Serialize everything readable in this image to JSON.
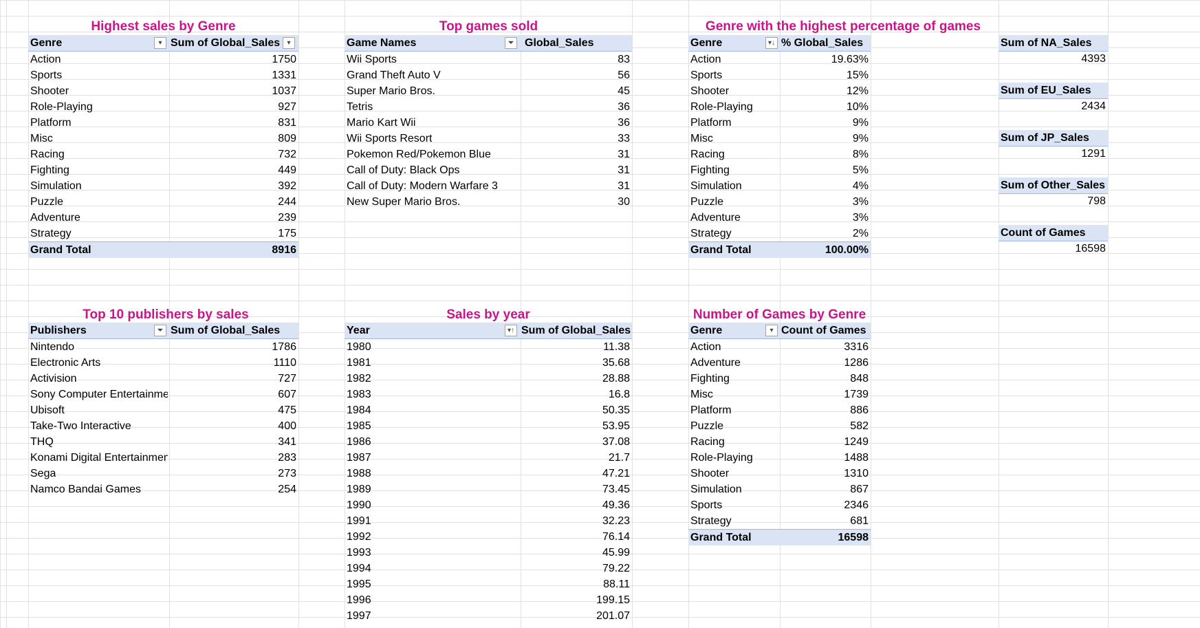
{
  "genre_sales": {
    "title": "Highest sales by Genre",
    "col1": "Genre",
    "col2": "Sum of Global_Sales",
    "rows": [
      {
        "label": "Action",
        "value": "1750"
      },
      {
        "label": "Sports",
        "value": "1331"
      },
      {
        "label": "Shooter",
        "value": "1037"
      },
      {
        "label": "Role-Playing",
        "value": "927"
      },
      {
        "label": "Platform",
        "value": "831"
      },
      {
        "label": "Misc",
        "value": "809"
      },
      {
        "label": "Racing",
        "value": "732"
      },
      {
        "label": "Fighting",
        "value": "449"
      },
      {
        "label": "Simulation",
        "value": "392"
      },
      {
        "label": "Puzzle",
        "value": "244"
      },
      {
        "label": "Adventure",
        "value": "239"
      },
      {
        "label": "Strategy",
        "value": "175"
      }
    ],
    "total_label": "Grand Total",
    "total_value": "8916"
  },
  "top_games": {
    "title": "Top games sold",
    "col1": "Game Names",
    "col2": "Global_Sales",
    "rows": [
      {
        "label": "Wii Sports",
        "value": "83"
      },
      {
        "label": "Grand Theft Auto V",
        "value": "56"
      },
      {
        "label": "Super Mario Bros.",
        "value": "45"
      },
      {
        "label": "Tetris",
        "value": "36"
      },
      {
        "label": "Mario Kart Wii",
        "value": "36"
      },
      {
        "label": "Wii Sports Resort",
        "value": "33"
      },
      {
        "label": "Pokemon Red/Pokemon Blue",
        "value": "31"
      },
      {
        "label": "Call of Duty: Black Ops",
        "value": "31"
      },
      {
        "label": "Call of Duty: Modern Warfare 3",
        "value": "31"
      },
      {
        "label": "New Super Mario Bros.",
        "value": "30"
      }
    ]
  },
  "genre_pct": {
    "title": "Genre with the highest percentage of games",
    "col1": "Genre",
    "col2": "% Global_Sales",
    "rows": [
      {
        "label": "Action",
        "value": "19.63%"
      },
      {
        "label": "Sports",
        "value": "15%"
      },
      {
        "label": "Shooter",
        "value": "12%"
      },
      {
        "label": "Role-Playing",
        "value": "10%"
      },
      {
        "label": "Platform",
        "value": "9%"
      },
      {
        "label": "Misc",
        "value": "9%"
      },
      {
        "label": "Racing",
        "value": "8%"
      },
      {
        "label": "Fighting",
        "value": "5%"
      },
      {
        "label": "Simulation",
        "value": "4%"
      },
      {
        "label": "Puzzle",
        "value": "3%"
      },
      {
        "label": "Adventure",
        "value": "3%"
      },
      {
        "label": "Strategy",
        "value": "2%"
      }
    ],
    "total_label": "Grand Total",
    "total_value": "100.00%"
  },
  "summary": [
    {
      "label": "Sum of NA_Sales",
      "value": "4393"
    },
    {
      "label": "Sum of EU_Sales",
      "value": "2434"
    },
    {
      "label": "Sum of JP_Sales",
      "value": "1291"
    },
    {
      "label": "Sum of Other_Sales",
      "value": "798"
    },
    {
      "label": "Count of Games",
      "value": "16598"
    }
  ],
  "publishers": {
    "title": "Top 10 publishers by sales",
    "col1": "Publishers",
    "col2": "Sum of Global_Sales",
    "rows": [
      {
        "label": "Nintendo",
        "value": "1786"
      },
      {
        "label": "Electronic Arts",
        "value": "1110"
      },
      {
        "label": "Activision",
        "value": "727"
      },
      {
        "label": "Sony Computer Entertainme",
        "value": "607"
      },
      {
        "label": "Ubisoft",
        "value": "475"
      },
      {
        "label": "Take-Two Interactive",
        "value": "400"
      },
      {
        "label": "THQ",
        "value": "341"
      },
      {
        "label": "Konami Digital Entertainmen",
        "value": "283"
      },
      {
        "label": "Sega",
        "value": "273"
      },
      {
        "label": "Namco Bandai Games",
        "value": "254"
      }
    ]
  },
  "sales_by_year": {
    "title": "Sales by year",
    "col1": "Year",
    "col2": "Sum of Global_Sales",
    "rows": [
      {
        "label": "1980",
        "value": "11.38"
      },
      {
        "label": "1981",
        "value": "35.68"
      },
      {
        "label": "1982",
        "value": "28.88"
      },
      {
        "label": "1983",
        "value": "16.8"
      },
      {
        "label": "1984",
        "value": "50.35"
      },
      {
        "label": "1985",
        "value": "53.95"
      },
      {
        "label": "1986",
        "value": "37.08"
      },
      {
        "label": "1987",
        "value": "21.7"
      },
      {
        "label": "1988",
        "value": "47.21"
      },
      {
        "label": "1989",
        "value": "73.45"
      },
      {
        "label": "1990",
        "value": "49.36"
      },
      {
        "label": "1991",
        "value": "32.23"
      },
      {
        "label": "1992",
        "value": "76.14"
      },
      {
        "label": "1993",
        "value": "45.99"
      },
      {
        "label": "1994",
        "value": "79.22"
      },
      {
        "label": "1995",
        "value": "88.11"
      },
      {
        "label": "1996",
        "value": "199.15"
      },
      {
        "label": "1997",
        "value": "201.07"
      }
    ]
  },
  "games_by_genre": {
    "title": "Number of Games by Genre",
    "col1": "Genre",
    "col2": "Count of Games",
    "rows": [
      {
        "label": "Action",
        "value": "3316"
      },
      {
        "label": "Adventure",
        "value": "1286"
      },
      {
        "label": "Fighting",
        "value": "848"
      },
      {
        "label": "Misc",
        "value": "1739"
      },
      {
        "label": "Platform",
        "value": "886"
      },
      {
        "label": "Puzzle",
        "value": "582"
      },
      {
        "label": "Racing",
        "value": "1249"
      },
      {
        "label": "Role-Playing",
        "value": "1488"
      },
      {
        "label": "Shooter",
        "value": "1310"
      },
      {
        "label": "Simulation",
        "value": "867"
      },
      {
        "label": "Sports",
        "value": "2346"
      },
      {
        "label": "Strategy",
        "value": "681"
      }
    ],
    "total_label": "Grand Total",
    "total_value": "16598"
  },
  "icons": {
    "dropdown": "dropdown-arrow-icon",
    "filter": "filter-icon",
    "sort_desc": "sort-descending-icon",
    "sort_asc": "sort-ascending-icon"
  },
  "colors": {
    "title": "#c8168a",
    "header_fill": "#dae4f5",
    "grid": "#e1e1e1"
  }
}
